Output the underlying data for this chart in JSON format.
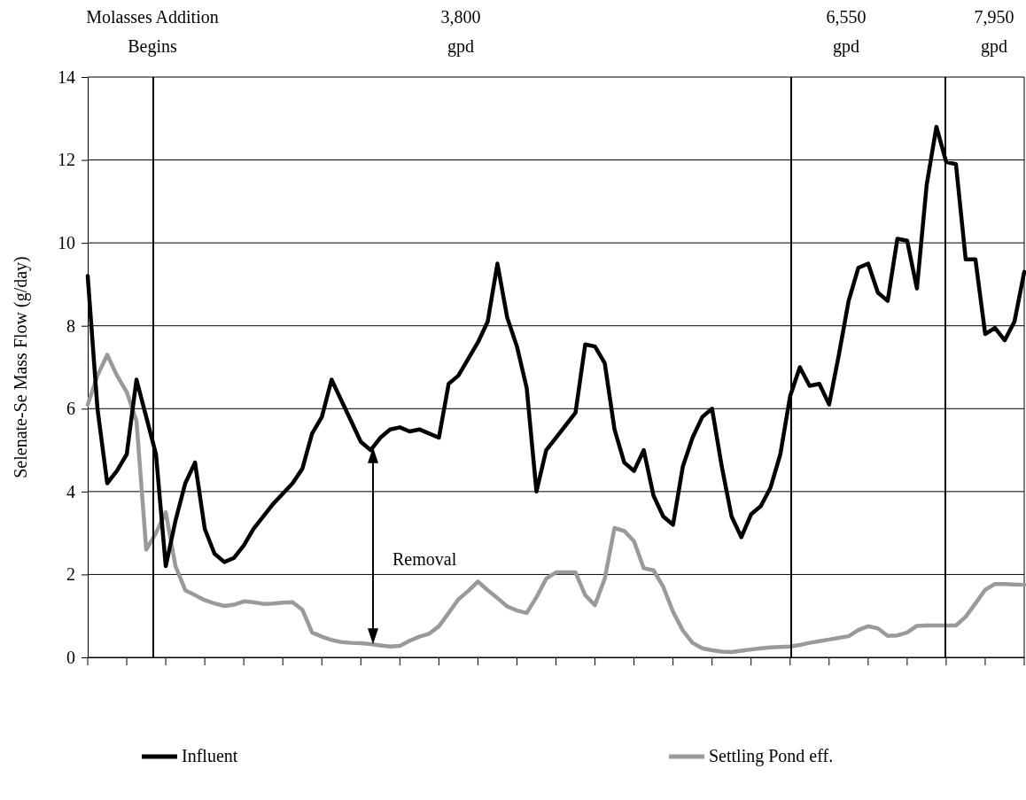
{
  "chart_data": {
    "type": "line",
    "ylabel": "Selenate-Se Mass Flow (g/day)",
    "categories": [
      null,
      null,
      null,
      null,
      null,
      null,
      null,
      null,
      null,
      null,
      null,
      null,
      null,
      null,
      null,
      null,
      null,
      null,
      null,
      null,
      null,
      null,
      null,
      null,
      null,
      null,
      null,
      null,
      null,
      null,
      null,
      null,
      null,
      null,
      null,
      null,
      null,
      null,
      null,
      null,
      null,
      null,
      null,
      null,
      null,
      null,
      null,
      null,
      null,
      null,
      null,
      null,
      null,
      null,
      null,
      null,
      null,
      null,
      null,
      null,
      null,
      null,
      null,
      null,
      null,
      null,
      null,
      null,
      null,
      null,
      null,
      null,
      null,
      null,
      null,
      null,
      null,
      null,
      null,
      null,
      null,
      null,
      null,
      null,
      null,
      null,
      null,
      null,
      null,
      null,
      null,
      null,
      null,
      null,
      null,
      null,
      null
    ],
    "ylim": [
      0,
      14
    ],
    "yticks": [
      0,
      2,
      4,
      6,
      8,
      10,
      12,
      14
    ],
    "grid": "y",
    "legend": "bottom",
    "marker": "none",
    "line_style": "solid",
    "series": [
      {
        "name": "Influent",
        "color": "#000000",
        "values": [
          9.2,
          6.0,
          4.2,
          4.5,
          4.9,
          6.7,
          5.8,
          4.9,
          2.2,
          3.3,
          4.2,
          4.7,
          3.1,
          2.5,
          2.3,
          2.4,
          2.7,
          3.1,
          3.4,
          3.7,
          3.95,
          4.2,
          4.55,
          5.4,
          5.8,
          6.7,
          6.2,
          5.7,
          5.2,
          5.0,
          5.3,
          5.5,
          5.55,
          5.45,
          5.5,
          5.4,
          5.3,
          6.6,
          6.8,
          7.2,
          7.6,
          8.1,
          9.5,
          8.2,
          7.5,
          6.5,
          4.0,
          5.0,
          5.3,
          5.6,
          5.9,
          7.55,
          7.5,
          7.1,
          5.5,
          4.7,
          4.5,
          5.0,
          3.9,
          3.4,
          3.2,
          4.6,
          5.3,
          5.8,
          6.0,
          4.6,
          3.4,
          2.9,
          3.45,
          3.65,
          4.1,
          4.9,
          6.3,
          7.0,
          6.55,
          6.6,
          6.1,
          7.3,
          8.6,
          9.4,
          9.5,
          8.8,
          8.6,
          10.1,
          10.05,
          8.9,
          11.4,
          12.8,
          11.95,
          11.9,
          9.6,
          9.6,
          7.8,
          7.95,
          7.65,
          8.1,
          9.3
        ]
      },
      {
        "name": "Settling Pond eff.",
        "color": "#9a9a9a",
        "values": [
          6.1,
          6.8,
          7.3,
          6.8,
          6.4,
          5.7,
          2.6,
          3.0,
          3.5,
          2.2,
          1.62,
          1.5,
          1.38,
          1.3,
          1.24,
          1.27,
          1.35,
          1.33,
          1.29,
          1.3,
          1.32,
          1.33,
          1.15,
          0.6,
          0.5,
          0.42,
          0.37,
          0.35,
          0.34,
          0.32,
          0.29,
          0.26,
          0.28,
          0.4,
          0.5,
          0.57,
          0.75,
          1.07,
          1.4,
          1.6,
          1.83,
          1.62,
          1.43,
          1.23,
          1.13,
          1.07,
          1.45,
          1.9,
          2.05,
          2.05,
          2.05,
          1.5,
          1.26,
          1.9,
          3.12,
          3.05,
          2.8,
          2.15,
          2.1,
          1.7,
          1.1,
          0.65,
          0.35,
          0.22,
          0.17,
          0.14,
          0.13,
          0.16,
          0.19,
          0.22,
          0.24,
          0.25,
          0.26,
          0.3,
          0.35,
          0.39,
          0.43,
          0.47,
          0.51,
          0.66,
          0.75,
          0.7,
          0.52,
          0.53,
          0.6,
          0.76,
          0.77,
          0.77,
          0.77,
          0.77,
          0.98,
          1.3,
          1.63,
          1.77,
          1.77,
          1.76,
          1.75
        ]
      }
    ],
    "annotations": [
      "Molasses Addition\nBegins",
      "3,800\ngpd",
      "6,550\ngpd",
      "7,950\ngpd",
      "Removal"
    ]
  }
}
